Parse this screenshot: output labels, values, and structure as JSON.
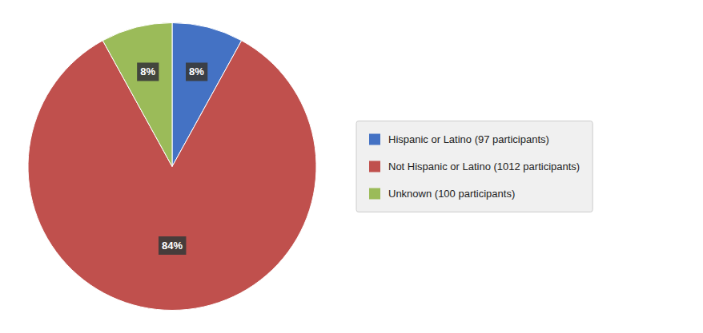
{
  "chart_data": {
    "type": "pie",
    "categories": [
      "Hispanic or Latino (97 participants)",
      "Not Hispanic or Latino (1012 participants)",
      "Unknown (100 participants)"
    ],
    "values": [
      8,
      84,
      8
    ],
    "value_labels": [
      "8%",
      "84%",
      "8%"
    ],
    "colors": [
      "#4472C4",
      "#C0504D",
      "#9BBB59"
    ],
    "data_labels": true,
    "legend": "right"
  }
}
